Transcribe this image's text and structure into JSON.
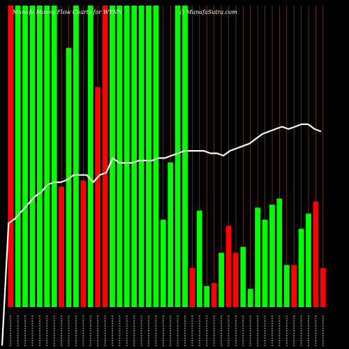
{
  "header": {
    "title": "Munafa Money Flow Charts for WYNN",
    "credit": "() MunafaSutra.com"
  },
  "chart_data": {
    "type": "bar",
    "title": "Munafa Money Flow Charts for WYNN",
    "note": "Bars show money flow per session (green = inflow, red = outflow) with a white price line overlaid; x-axis labels are dense and not legible.",
    "colors": {
      "up": "#00ff00",
      "down": "#ff0000",
      "line": "#ffffff",
      "grid": "#8b4513",
      "background": "#000000"
    },
    "ylim": [
      0,
      100
    ],
    "line_ylim": [
      0,
      100
    ],
    "bars": [
      {
        "color": "red",
        "value": 100
      },
      {
        "color": "green",
        "value": 100
      },
      {
        "color": "green",
        "value": 100
      },
      {
        "color": "green",
        "value": 100
      },
      {
        "color": "green",
        "value": 100
      },
      {
        "color": "green",
        "value": 100
      },
      {
        "color": "green",
        "value": 100
      },
      {
        "color": "red",
        "value": 40
      },
      {
        "color": "green",
        "value": 86
      },
      {
        "color": "green",
        "value": 100
      },
      {
        "color": "red",
        "value": 42
      },
      {
        "color": "green",
        "value": 100
      },
      {
        "color": "red",
        "value": 73
      },
      {
        "color": "red",
        "value": 100
      },
      {
        "color": "green",
        "value": 100
      },
      {
        "color": "green",
        "value": 100
      },
      {
        "color": "green",
        "value": 100
      },
      {
        "color": "green",
        "value": 100
      },
      {
        "color": "green",
        "value": 100
      },
      {
        "color": "green",
        "value": 100
      },
      {
        "color": "green",
        "value": 100
      },
      {
        "color": "green",
        "value": 29
      },
      {
        "color": "green",
        "value": 48
      },
      {
        "color": "green",
        "value": 100
      },
      {
        "color": "green",
        "value": 100
      },
      {
        "color": "red",
        "value": 13
      },
      {
        "color": "green",
        "value": 32
      },
      {
        "color": "green",
        "value": 7
      },
      {
        "color": "red",
        "value": 8
      },
      {
        "color": "green",
        "value": 18
      },
      {
        "color": "red",
        "value": 27
      },
      {
        "color": "red",
        "value": 18
      },
      {
        "color": "green",
        "value": 20
      },
      {
        "color": "green",
        "value": 6
      },
      {
        "color": "green",
        "value": 33
      },
      {
        "color": "green",
        "value": 29
      },
      {
        "color": "green",
        "value": 34
      },
      {
        "color": "green",
        "value": 36
      },
      {
        "color": "green",
        "value": 14
      },
      {
        "color": "red",
        "value": 14
      },
      {
        "color": "green",
        "value": 26
      },
      {
        "color": "green",
        "value": 31
      },
      {
        "color": "red",
        "value": 35
      },
      {
        "color": "red",
        "value": 13
      }
    ],
    "line": [
      0,
      40,
      42,
      45,
      48,
      51,
      53,
      56,
      57,
      57,
      58,
      60,
      60,
      60,
      57,
      60,
      61,
      67,
      65,
      65,
      65,
      66,
      66,
      66,
      67,
      67,
      68,
      69,
      70,
      70,
      70,
      70,
      69,
      69,
      68,
      70,
      71,
      72,
      73,
      75,
      77,
      78,
      79,
      80,
      79,
      80,
      81,
      81,
      79,
      78
    ],
    "x_labels_visible": false
  }
}
